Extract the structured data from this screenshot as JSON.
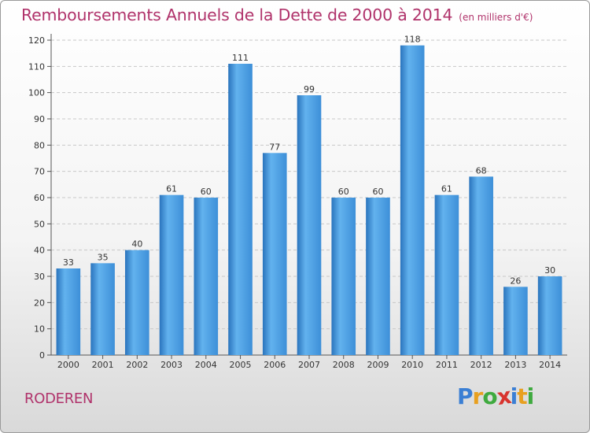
{
  "chart_data": {
    "type": "bar",
    "title": "Remboursements Annuels de la Dette de 2000 à 2014",
    "subtitle": "(en milliers d'€)",
    "categories": [
      "2000",
      "2001",
      "2002",
      "2003",
      "2004",
      "2005",
      "2006",
      "2007",
      "2008",
      "2009",
      "2010",
      "2011",
      "2012",
      "2013",
      "2014"
    ],
    "values": [
      33,
      35,
      40,
      61,
      60,
      111,
      77,
      99,
      60,
      60,
      118,
      61,
      68,
      26,
      30
    ],
    "yticks": [
      0,
      10,
      20,
      30,
      40,
      50,
      60,
      70,
      80,
      90,
      100,
      110,
      120
    ],
    "ylim": [
      0,
      120
    ],
    "grid": true,
    "bar_color": "#3d8fd8",
    "bar_color_light": "#62b2ee",
    "bar_color_dark": "#2a74bd"
  },
  "footer": {
    "city": "RODEREN",
    "logo": [
      "P",
      "r",
      "o",
      "x",
      "i",
      "t",
      "i"
    ],
    "logo_colors": [
      "#3b7fd4",
      "#e8a020",
      "#3faa3f",
      "#d8332e",
      "#3b7fd4",
      "#e8a020",
      "#3faa3f"
    ]
  }
}
